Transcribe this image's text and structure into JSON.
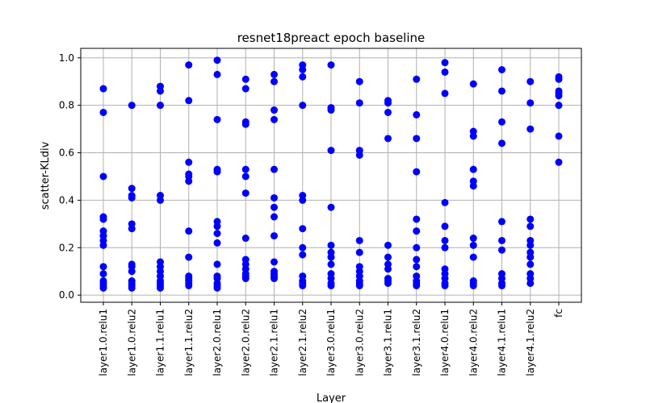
{
  "chart_data": {
    "type": "scatter",
    "title": "resnet18preact epoch baseline",
    "xlabel": "Layer",
    "ylabel": "scatter-KLdiv",
    "ylim": [
      -0.03,
      1.04
    ],
    "yticks": [
      0.0,
      0.2,
      0.4,
      0.6,
      0.8,
      1.0
    ],
    "ytick_labels": [
      "0.0",
      "0.2",
      "0.4",
      "0.6",
      "0.8",
      "1.0"
    ],
    "grid": true,
    "marker_color": "#0000ff",
    "categories": [
      "layer1.0.relu1",
      "layer1.0.relu2",
      "layer1.1.relu1",
      "layer1.1.relu2",
      "layer2.0.relu1",
      "layer2.0.relu2",
      "layer2.1.relu1",
      "layer2.1.relu2",
      "layer3.0.relu1",
      "layer3.0.relu2",
      "layer3.1.relu1",
      "layer3.1.relu2",
      "layer4.0.relu1",
      "layer4.0.relu2",
      "layer4.1.relu1",
      "layer4.1.relu2",
      "fc"
    ],
    "series": [
      {
        "name": "layer1.0.relu1",
        "values": [
          0.87,
          0.77,
          0.5,
          0.33,
          0.32,
          0.27,
          0.25,
          0.23,
          0.21,
          0.12,
          0.09,
          0.06,
          0.05,
          0.04,
          0.03
        ]
      },
      {
        "name": "layer1.0.relu2",
        "values": [
          0.8,
          0.45,
          0.42,
          0.41,
          0.3,
          0.28,
          0.13,
          0.12,
          0.1,
          0.06,
          0.05,
          0.04,
          0.03
        ]
      },
      {
        "name": "layer1.1.relu1",
        "values": [
          0.88,
          0.86,
          0.8,
          0.42,
          0.4,
          0.14,
          0.12,
          0.1,
          0.08,
          0.06,
          0.05,
          0.04,
          0.03
        ]
      },
      {
        "name": "layer1.1.relu2",
        "values": [
          0.97,
          0.82,
          0.56,
          0.51,
          0.5,
          0.48,
          0.27,
          0.16,
          0.08,
          0.07,
          0.06,
          0.05,
          0.04
        ]
      },
      {
        "name": "layer2.0.relu1",
        "values": [
          0.99,
          0.93,
          0.74,
          0.53,
          0.52,
          0.31,
          0.29,
          0.26,
          0.22,
          0.13,
          0.08,
          0.07,
          0.05,
          0.04,
          0.03
        ]
      },
      {
        "name": "layer2.0.relu2",
        "values": [
          0.91,
          0.87,
          0.73,
          0.72,
          0.53,
          0.5,
          0.43,
          0.24,
          0.15,
          0.13,
          0.11,
          0.09,
          0.08,
          0.07
        ]
      },
      {
        "name": "layer2.1.relu1",
        "values": [
          0.93,
          0.9,
          0.78,
          0.74,
          0.53,
          0.41,
          0.37,
          0.33,
          0.25,
          0.14,
          0.1,
          0.09,
          0.08,
          0.07
        ]
      },
      {
        "name": "layer2.1.relu2",
        "values": [
          0.97,
          0.95,
          0.92,
          0.8,
          0.42,
          0.4,
          0.28,
          0.2,
          0.17,
          0.08,
          0.06,
          0.05,
          0.04
        ]
      },
      {
        "name": "layer3.0.relu1",
        "values": [
          0.97,
          0.79,
          0.78,
          0.61,
          0.37,
          0.21,
          0.18,
          0.16,
          0.13,
          0.09,
          0.07,
          0.05,
          0.04
        ]
      },
      {
        "name": "layer3.0.relu2",
        "values": [
          0.9,
          0.81,
          0.61,
          0.59,
          0.23,
          0.18,
          0.12,
          0.1,
          0.08,
          0.06,
          0.05,
          0.04
        ]
      },
      {
        "name": "layer3.1.relu1",
        "values": [
          0.82,
          0.81,
          0.77,
          0.66,
          0.21,
          0.16,
          0.13,
          0.11,
          0.07,
          0.06,
          0.05
        ]
      },
      {
        "name": "layer3.1.relu2",
        "values": [
          0.91,
          0.76,
          0.66,
          0.52,
          0.32,
          0.27,
          0.2,
          0.15,
          0.12,
          0.08,
          0.06,
          0.05,
          0.04
        ]
      },
      {
        "name": "layer4.0.relu1",
        "values": [
          0.98,
          0.94,
          0.85,
          0.39,
          0.29,
          0.23,
          0.2,
          0.11,
          0.09,
          0.07,
          0.05,
          0.04
        ]
      },
      {
        "name": "layer4.0.relu2",
        "values": [
          0.89,
          0.69,
          0.67,
          0.53,
          0.48,
          0.46,
          0.24,
          0.21,
          0.16,
          0.06,
          0.05,
          0.04
        ]
      },
      {
        "name": "layer4.1.relu1",
        "values": [
          0.95,
          0.86,
          0.73,
          0.64,
          0.31,
          0.23,
          0.19,
          0.09,
          0.07,
          0.05,
          0.04
        ]
      },
      {
        "name": "layer4.1.relu2",
        "values": [
          0.9,
          0.81,
          0.7,
          0.32,
          0.29,
          0.23,
          0.21,
          0.18,
          0.16,
          0.13,
          0.09,
          0.07,
          0.05
        ]
      },
      {
        "name": "fc",
        "values": [
          0.92,
          0.91,
          0.86,
          0.85,
          0.84,
          0.8,
          0.67,
          0.56
        ]
      }
    ]
  }
}
